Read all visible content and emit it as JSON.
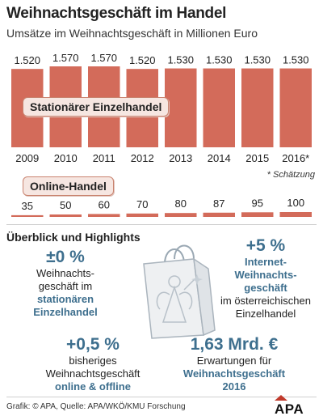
{
  "header": {
    "title": "Weihnachtsgeschäft im Handel",
    "subtitle": "Umsätze im Weihnachtsgeschäft in Millionen Euro"
  },
  "chart_data": [
    {
      "type": "bar",
      "title": "Stationärer Einzelhandel",
      "categories": [
        "2009",
        "2010",
        "2011",
        "2012",
        "2013",
        "2014",
        "2015",
        "2016*"
      ],
      "values": [
        1520,
        1570,
        1570,
        1520,
        1530,
        1530,
        1530,
        1530
      ],
      "value_labels": [
        "1.520",
        "1.570",
        "1.570",
        "1.520",
        "1.530",
        "1.530",
        "1.530",
        "1.530"
      ],
      "color": "#d36b5a"
    },
    {
      "type": "bar",
      "title": "Online-Handel",
      "categories": [
        "2009",
        "2010",
        "2011",
        "2012",
        "2013",
        "2014",
        "2015",
        "2016*"
      ],
      "values": [
        35,
        50,
        60,
        70,
        80,
        87,
        95,
        100
      ],
      "value_labels": [
        "35",
        "50",
        "60",
        "70",
        "80",
        "87",
        "95",
        "100"
      ],
      "color": "#d36b5a"
    }
  ],
  "labels": {
    "stationary": "Stationärer Einzelhandel",
    "online": "Online-Handel",
    "footnote": "* Schätzung"
  },
  "highlights": {
    "section_title": "Überblick und Highlights",
    "h1": {
      "big": "±0 %",
      "l1": "Weihnachts-",
      "l2": "geschäft im",
      "em1": "stationären",
      "em2": "Einzelhandel"
    },
    "h2": {
      "big": "+5 %",
      "em1": "Internet-",
      "em2": "Weihnachts-",
      "em3": "geschäft",
      "l1": "im österreichischen",
      "l2": "Einzelhandel"
    },
    "h3": {
      "big": "+0,5 %",
      "l1": "bisheriges",
      "l2": "Weihnachtsgeschäft",
      "em1": "online & offline"
    },
    "h4": {
      "big": "1,63 Mrd. €",
      "l1": "Erwartungen für",
      "em1": "Weihnachtsgeschäft",
      "em2": "2016"
    }
  },
  "footer": {
    "source": "Grafik: © APA, Quelle: APA/WKÖ/KMU Forschung",
    "logo": "APA"
  },
  "colors": {
    "bar": "#d36b5a",
    "accent_text": "#3e6f8e",
    "pill_bg": "#f6e6e1"
  },
  "icons": [
    "shopping-bag-angel-icon",
    "apa-logo-icon"
  ]
}
